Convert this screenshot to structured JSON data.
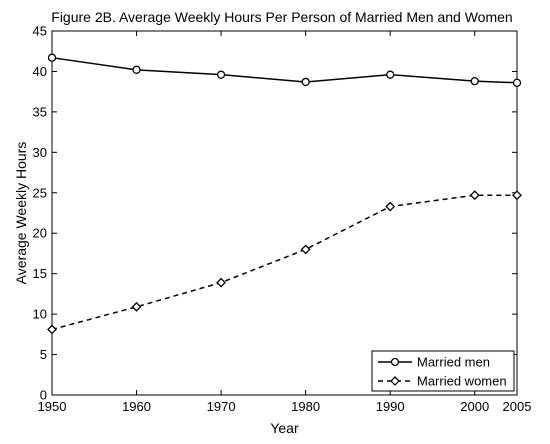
{
  "chart_data": {
    "type": "line",
    "title": "Figure 2B. Average Weekly Hours Per Person of Married Men and Women",
    "xlabel": "Year",
    "ylabel": "Average Weekly Hours",
    "x": [
      1950,
      1960,
      1970,
      1980,
      1990,
      2000,
      2005
    ],
    "xticks": [
      1950,
      1960,
      1970,
      1980,
      1990,
      2000,
      2005
    ],
    "yticks": [
      0,
      5,
      10,
      15,
      20,
      25,
      30,
      35,
      40,
      45
    ],
    "xlim": [
      1950,
      2005
    ],
    "ylim": [
      0,
      45
    ],
    "grid": false,
    "legend_position": "bottom-right",
    "series": [
      {
        "name": "Married men",
        "values": [
          41.7,
          40.2,
          39.6,
          38.7,
          39.6,
          38.8,
          38.6
        ],
        "line_style": "solid",
        "marker": "circle",
        "color": "#000000"
      },
      {
        "name": "Married women",
        "values": [
          8.1,
          10.9,
          13.9,
          18.0,
          23.3,
          24.7,
          24.7
        ],
        "line_style": "dashed",
        "marker": "diamond",
        "color": "#000000"
      }
    ]
  }
}
